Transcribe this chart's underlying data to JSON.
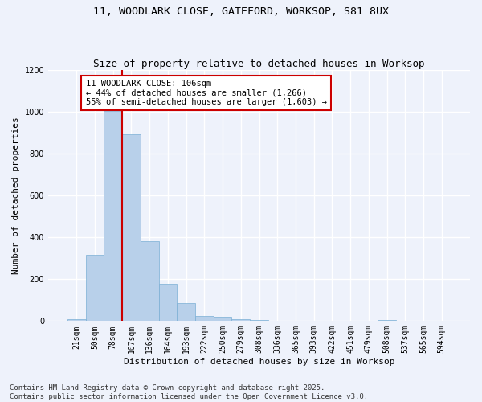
{
  "title1": "11, WOODLARK CLOSE, GATEFORD, WORKSOP, S81 8UX",
  "title2": "Size of property relative to detached houses in Worksop",
  "xlabel": "Distribution of detached houses by size in Worksop",
  "ylabel": "Number of detached properties",
  "categories": [
    "21sqm",
    "50sqm",
    "78sqm",
    "107sqm",
    "136sqm",
    "164sqm",
    "193sqm",
    "222sqm",
    "250sqm",
    "279sqm",
    "308sqm",
    "336sqm",
    "365sqm",
    "393sqm",
    "422sqm",
    "451sqm",
    "479sqm",
    "508sqm",
    "537sqm",
    "565sqm",
    "594sqm"
  ],
  "values": [
    10,
    315,
    1005,
    895,
    380,
    180,
    85,
    25,
    20,
    10,
    5,
    0,
    0,
    0,
    0,
    0,
    0,
    5,
    0,
    0,
    0
  ],
  "bar_color": "#b8d0ea",
  "bar_edge_color": "#7aafd4",
  "vline_color": "#cc0000",
  "annotation_text": "11 WOODLARK CLOSE: 106sqm\n← 44% of detached houses are smaller (1,266)\n55% of semi-detached houses are larger (1,603) →",
  "annotation_box_color": "#ffffff",
  "annotation_box_edge": "#cc0000",
  "ylim": [
    0,
    1200
  ],
  "yticks": [
    0,
    200,
    400,
    600,
    800,
    1000,
    1200
  ],
  "bg_color": "#eef2fb",
  "footer": "Contains HM Land Registry data © Crown copyright and database right 2025.\nContains public sector information licensed under the Open Government Licence v3.0.",
  "grid_color": "#ffffff",
  "title_fontsize": 9.5,
  "subtitle_fontsize": 9,
  "tick_fontsize": 7,
  "label_fontsize": 8,
  "annot_fontsize": 7.5,
  "footer_fontsize": 6.5
}
